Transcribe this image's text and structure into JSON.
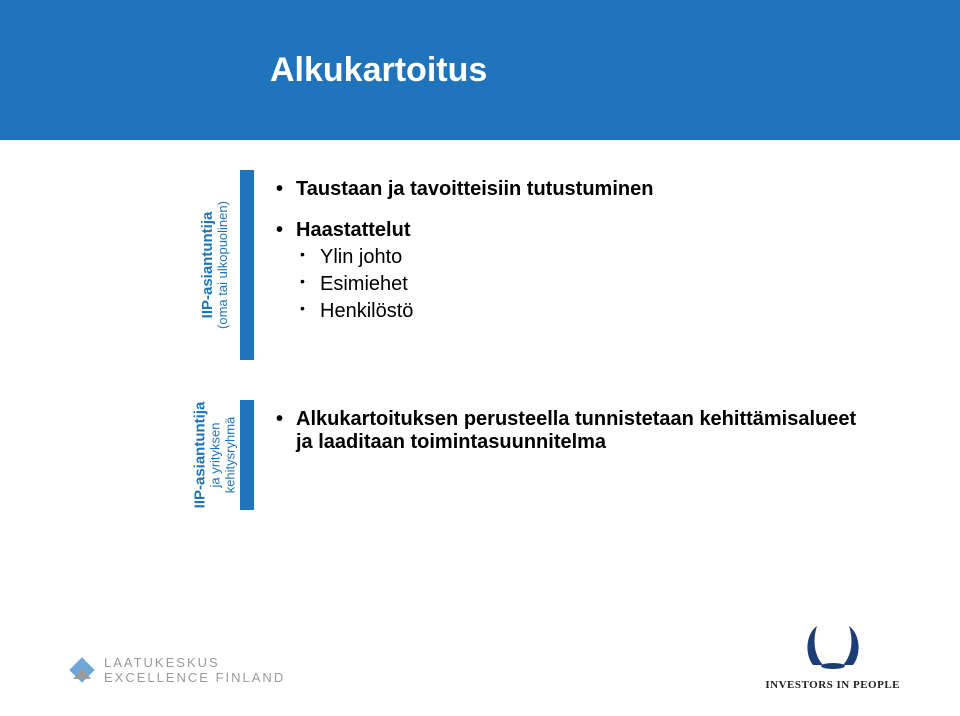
{
  "colors": {
    "header_bg": "#1f74bc",
    "header_text": "#ffffff",
    "label_text": "#1f74bc",
    "bar": "#1f74bc",
    "body_text": "#000000",
    "footer_left_accent": "#6fa8d8",
    "footer_text_grey": "#9a9a9a",
    "wreath": "#1d3e74",
    "iip_text": "#222222"
  },
  "fonts": {
    "title_size": 34,
    "vlabel_main_size": 15,
    "vlabel_sub_size": 13,
    "body_size": 20,
    "footer_left_size": 13,
    "footer_right_size": 11
  },
  "header": {
    "title": "Alkukartoitus"
  },
  "blocks": [
    {
      "label_main": "IIP-asiantuntija",
      "label_sub": "(oma tai ulkopuolinen)",
      "height": 190,
      "items": [
        {
          "text": "Taustaan ja tavoitteisiin tutustuminen",
          "bold": true
        },
        {
          "text": "Haastattelut",
          "bold": true,
          "sub": [
            "Ylin johto",
            "Esimiehet",
            "Henkilöstö"
          ]
        }
      ]
    },
    {
      "label_main": "IIP-asiantuntija",
      "label_sub_lines": [
        "ja yrityksen",
        "kehitysryhmä"
      ],
      "height": 110,
      "items": [
        {
          "text": "Alkukartoituksen perusteella tunnistetaan kehittämisalueet ja laaditaan toimintasuunnitelma",
          "bold": true
        }
      ]
    }
  ],
  "footer": {
    "left_line1": "LAATUKESKUS",
    "left_line2": "EXCELLENCE FINLAND",
    "right": "INVESTORS IN PEOPLE"
  }
}
